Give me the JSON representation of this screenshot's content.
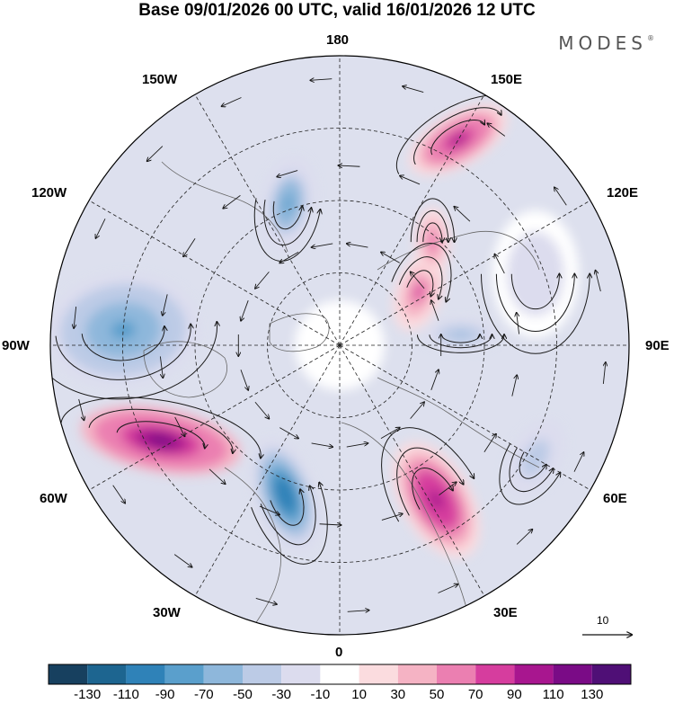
{
  "title": "Base 09/01/2026 00 UTC, valid 16/01/2026 12 UTC",
  "brand": "MODES",
  "brand_mark": "®",
  "longitude_labels": {
    "top": "180",
    "top_left": "150W",
    "top_right": "150E",
    "upper_left": "120W",
    "upper_right": "120E",
    "left": "90W",
    "right": "90E",
    "lower_left": "60W",
    "lower_right": "60E",
    "bottom_left": "30W",
    "bottom_right": "30E",
    "bottom": "0"
  },
  "reference_vector_label": "10",
  "colorbar": {
    "levels": [
      "-130",
      "-110",
      "-90",
      "-70",
      "-50",
      "-30",
      "-10",
      "10",
      "30",
      "50",
      "70",
      "90",
      "110",
      "130"
    ],
    "colors": [
      "#17405f",
      "#1d6590",
      "#2f82b8",
      "#5a9fcc",
      "#8eb7db",
      "#bccbe6",
      "#dcdcee",
      "#ffffff",
      "#fbdcdf",
      "#f5b3c4",
      "#eb7fb1",
      "#d63d9e",
      "#a8168f",
      "#7a0b86",
      "#4f0f76"
    ]
  },
  "anomaly_cells": [
    {
      "lon": 150,
      "r": 0.82,
      "value": 95,
      "rx": 0.19,
      "ry": 0.09,
      "rot": -30
    },
    {
      "lon": 200,
      "r": 0.52,
      "value": -75,
      "rx": 0.09,
      "ry": 0.16,
      "rot": 10
    },
    {
      "lon": 124,
      "r": 0.33,
      "value": 70,
      "rx": 0.08,
      "ry": 0.14,
      "rot": 20
    },
    {
      "lon": 138,
      "r": 0.48,
      "value": 60,
      "rx": 0.06,
      "ry": 0.12,
      "rot": 0
    },
    {
      "lon": 95,
      "r": 0.42,
      "value": -55,
      "rx": 0.12,
      "ry": 0.05,
      "rot": 0
    },
    {
      "lon": 266,
      "r": 0.75,
      "value": -80,
      "rx": 0.26,
      "ry": 0.19,
      "rot": -5
    },
    {
      "lon": 298,
      "r": 0.7,
      "value": 125,
      "rx": 0.28,
      "ry": 0.11,
      "rot": 10
    },
    {
      "lon": 340,
      "r": 0.55,
      "value": -110,
      "rx": 0.1,
      "ry": 0.2,
      "rot": -20
    },
    {
      "lon": 32,
      "r": 0.63,
      "value": 105,
      "rx": 0.12,
      "ry": 0.22,
      "rot": -30
    },
    {
      "lon": 60,
      "r": 0.78,
      "value": -50,
      "rx": 0.08,
      "ry": 0.14,
      "rot": 30
    },
    {
      "lon": 110,
      "r": 0.72,
      "value": -20,
      "rx": 0.15,
      "ry": 0.22,
      "rot": 0
    }
  ]
}
